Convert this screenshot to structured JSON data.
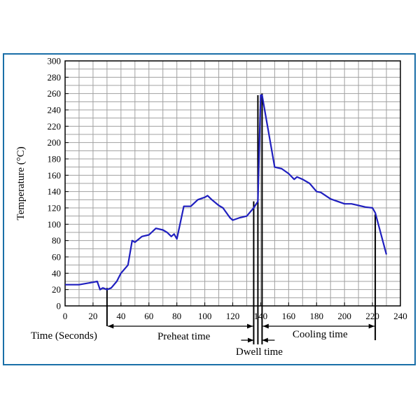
{
  "chart_data": {
    "type": "line",
    "xlabel": "Time (Seconds)",
    "ylabel": "Temperature (°C)",
    "xlim": [
      0,
      240
    ],
    "ylim": [
      0,
      300
    ],
    "x_ticks": [
      0,
      20,
      40,
      60,
      80,
      100,
      120,
      140,
      160,
      180,
      200,
      220,
      240
    ],
    "y_ticks": [
      0,
      20,
      40,
      60,
      80,
      100,
      120,
      140,
      160,
      180,
      200,
      220,
      240,
      260,
      280,
      300
    ],
    "x_minor_step": 10,
    "y_minor_step": 10,
    "grid": true,
    "line_color": "#1f1fbf",
    "series": [
      {
        "x": [
          0,
          10,
          20,
          23,
          25,
          27,
          30,
          33,
          37,
          40,
          45,
          48,
          50,
          55,
          60,
          65,
          70,
          73,
          76,
          78,
          80,
          85,
          90,
          95,
          100,
          102,
          105,
          110,
          113,
          118,
          120,
          125,
          130,
          135,
          138,
          140,
          141,
          150,
          155,
          160,
          164,
          166,
          170,
          175,
          180,
          183,
          190,
          200,
          205,
          210,
          215,
          220,
          222,
          230
        ],
        "y": [
          26,
          26,
          29,
          30,
          20,
          22,
          20,
          22,
          30,
          40,
          50,
          80,
          78,
          85,
          87,
          95,
          93,
          90,
          85,
          88,
          82,
          122,
          122,
          130,
          133,
          135,
          130,
          123,
          120,
          108,
          105,
          108,
          110,
          120,
          128,
          258,
          258,
          170,
          168,
          162,
          155,
          158,
          155,
          150,
          140,
          139,
          131,
          125,
          125,
          123,
          121,
          120,
          114,
          63
        ]
      }
    ],
    "annotations": [
      {
        "label": "Preheat time",
        "x_start": 30,
        "x_end": 135
      },
      {
        "label": "Dwell time",
        "x_start": 135,
        "x_end": 141
      },
      {
        "label": "Cooling time",
        "x_start": 141,
        "x_end": 222
      }
    ]
  }
}
